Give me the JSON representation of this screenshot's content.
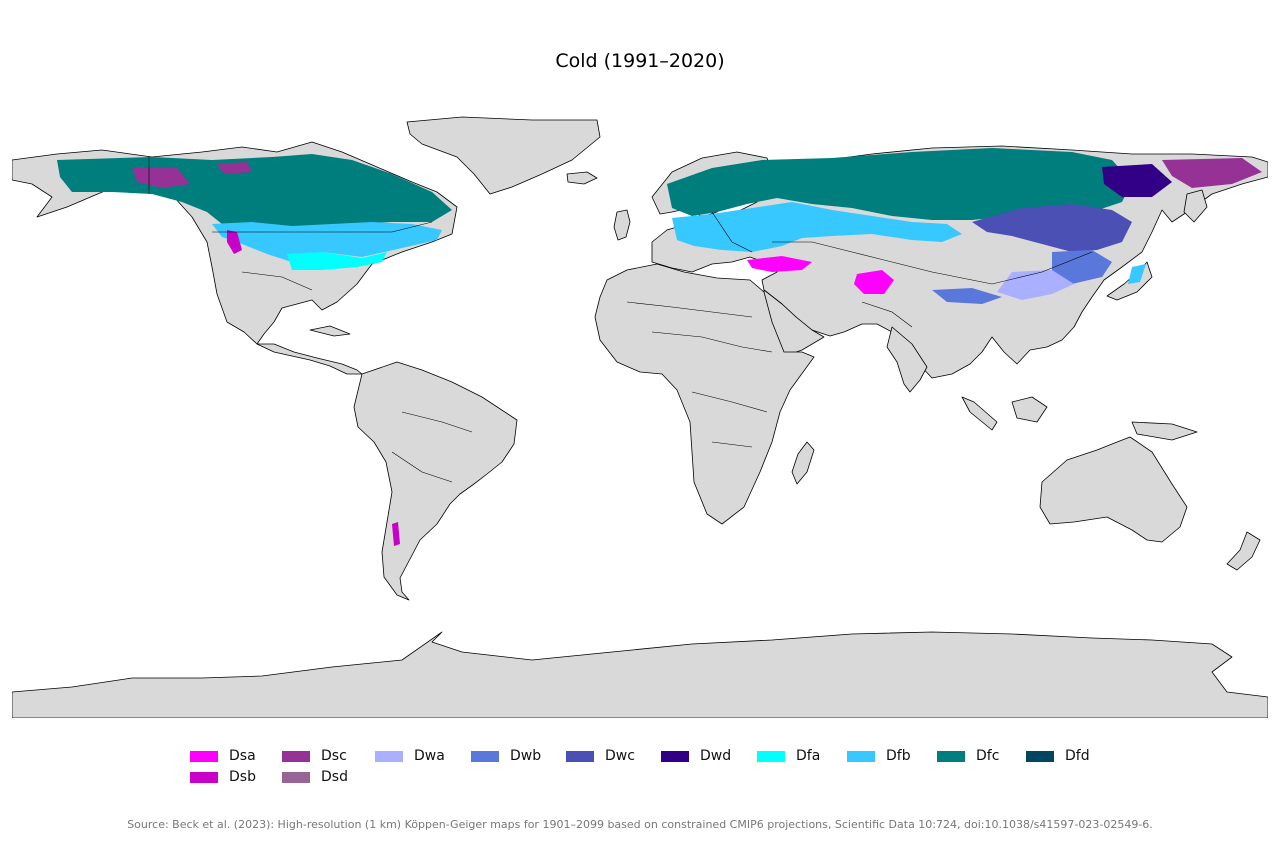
{
  "title": "Cold (1991–2020)",
  "map": {
    "projection": "equirectangular",
    "land_color": "#d9d9d9",
    "ocean_color": "#ffffff",
    "border_color": "#000000"
  },
  "legend": [
    {
      "code": "Dsa",
      "color": "#ff00ff"
    },
    {
      "code": "Dsb",
      "color": "#c800c8"
    },
    {
      "code": "Dsc",
      "color": "#963296"
    },
    {
      "code": "Dsd",
      "color": "#966496"
    },
    {
      "code": "Dwa",
      "color": "#aaafff"
    },
    {
      "code": "Dwb",
      "color": "#5a78dc"
    },
    {
      "code": "Dwc",
      "color": "#4b50b4"
    },
    {
      "code": "Dwd",
      "color": "#320087"
    },
    {
      "code": "Dfa",
      "color": "#00ffff"
    },
    {
      "code": "Dfb",
      "color": "#37c8ff"
    },
    {
      "code": "Dfc",
      "color": "#007d7d"
    },
    {
      "code": "Dfd",
      "color": "#00465f"
    }
  ],
  "source": "Source: Beck et al. (2023): High-resolution (1 km) Köppen-Geiger maps for 1901–2099 based on constrained CMIP6 projections, Scientific Data 10:724, doi:10.1038/s41597-023-02549-6."
}
